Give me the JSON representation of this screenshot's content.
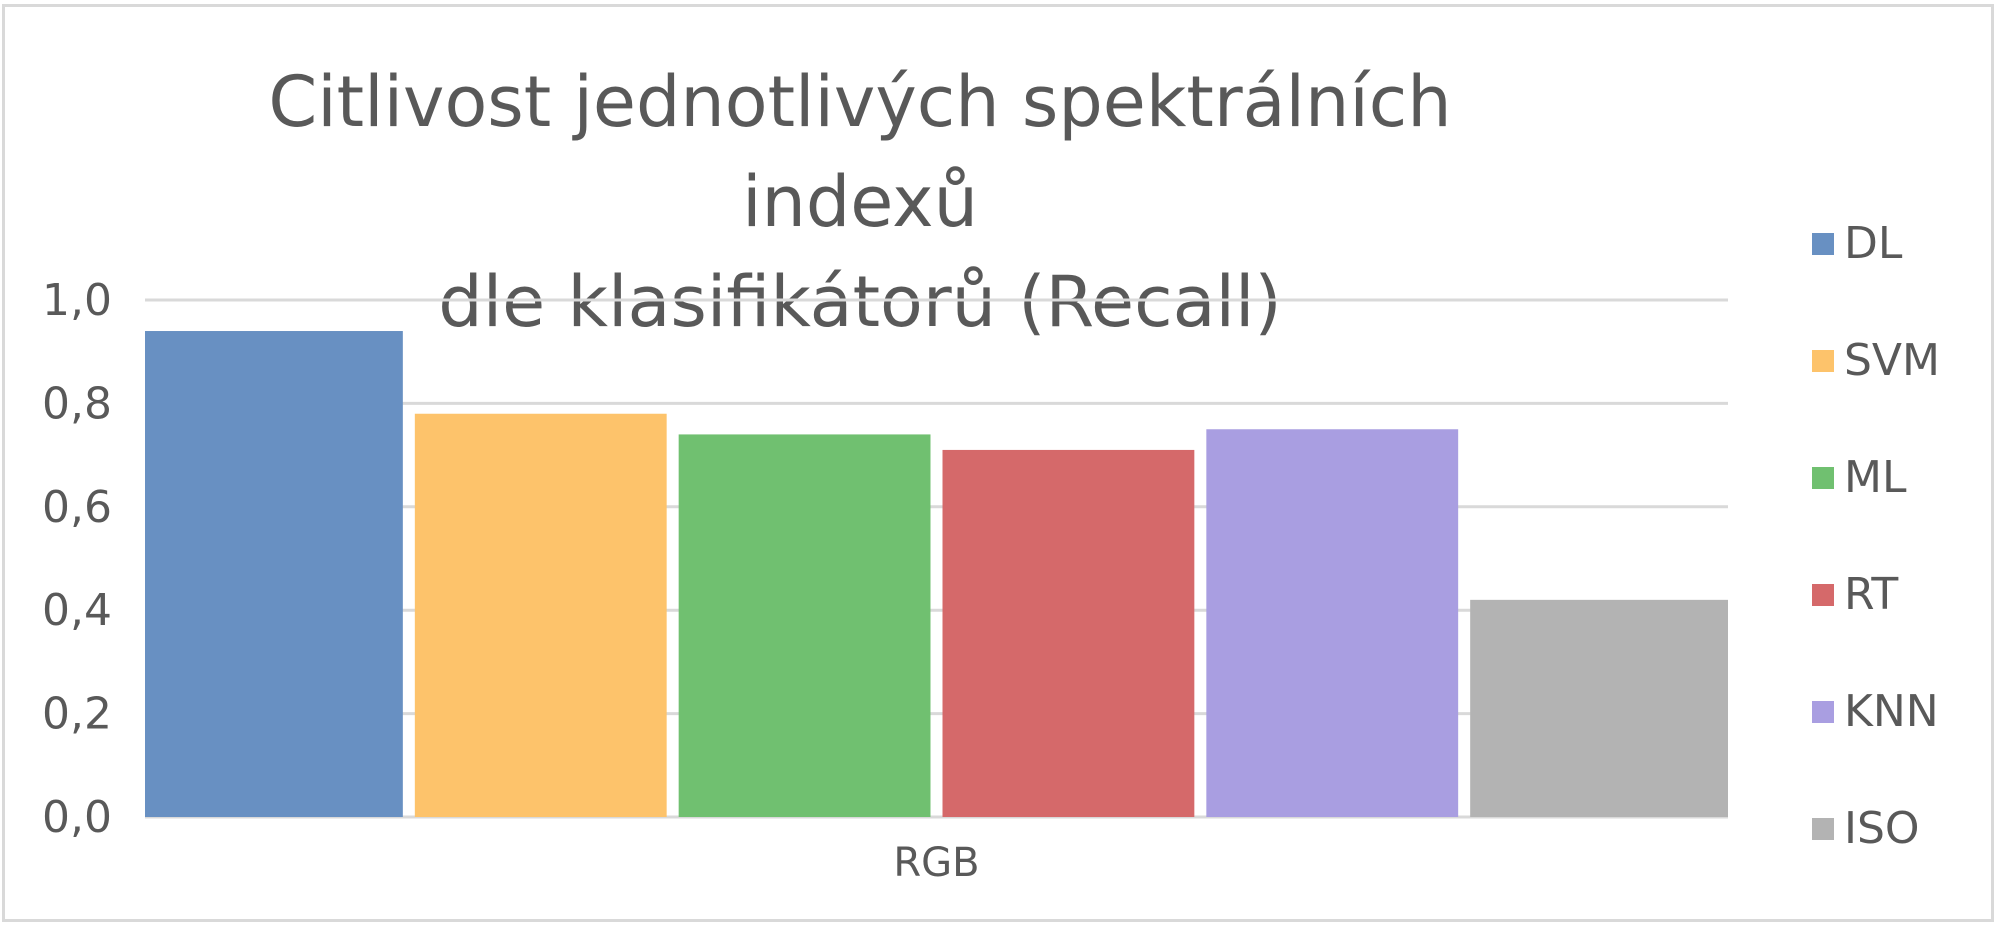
{
  "chart_data": {
    "type": "bar",
    "title": [
      "Citlivost jednotlivých spektrálních indexů",
      "dle klasifikátorů (Recall)"
    ],
    "categories": [
      "RGB"
    ],
    "series": [
      {
        "name": "DL",
        "values": [
          0.94
        ],
        "color": "#6890C2"
      },
      {
        "name": "SVM",
        "values": [
          0.78
        ],
        "color": "#FDC36B"
      },
      {
        "name": "ML",
        "values": [
          0.74
        ],
        "color": "#70C070"
      },
      {
        "name": "RT",
        "values": [
          0.71
        ],
        "color": "#D5696A"
      },
      {
        "name": "KNN",
        "values": [
          0.75
        ],
        "color": "#A99EE1"
      },
      {
        "name": "ISO",
        "values": [
          0.42
        ],
        "color": "#B3B3B3"
      }
    ],
    "ylim": [
      0,
      1
    ],
    "yticks": [
      "0,0",
      "0,2",
      "0,4",
      "0,6",
      "0,8",
      "1,0"
    ],
    "grid": true,
    "legend_position": "right"
  }
}
